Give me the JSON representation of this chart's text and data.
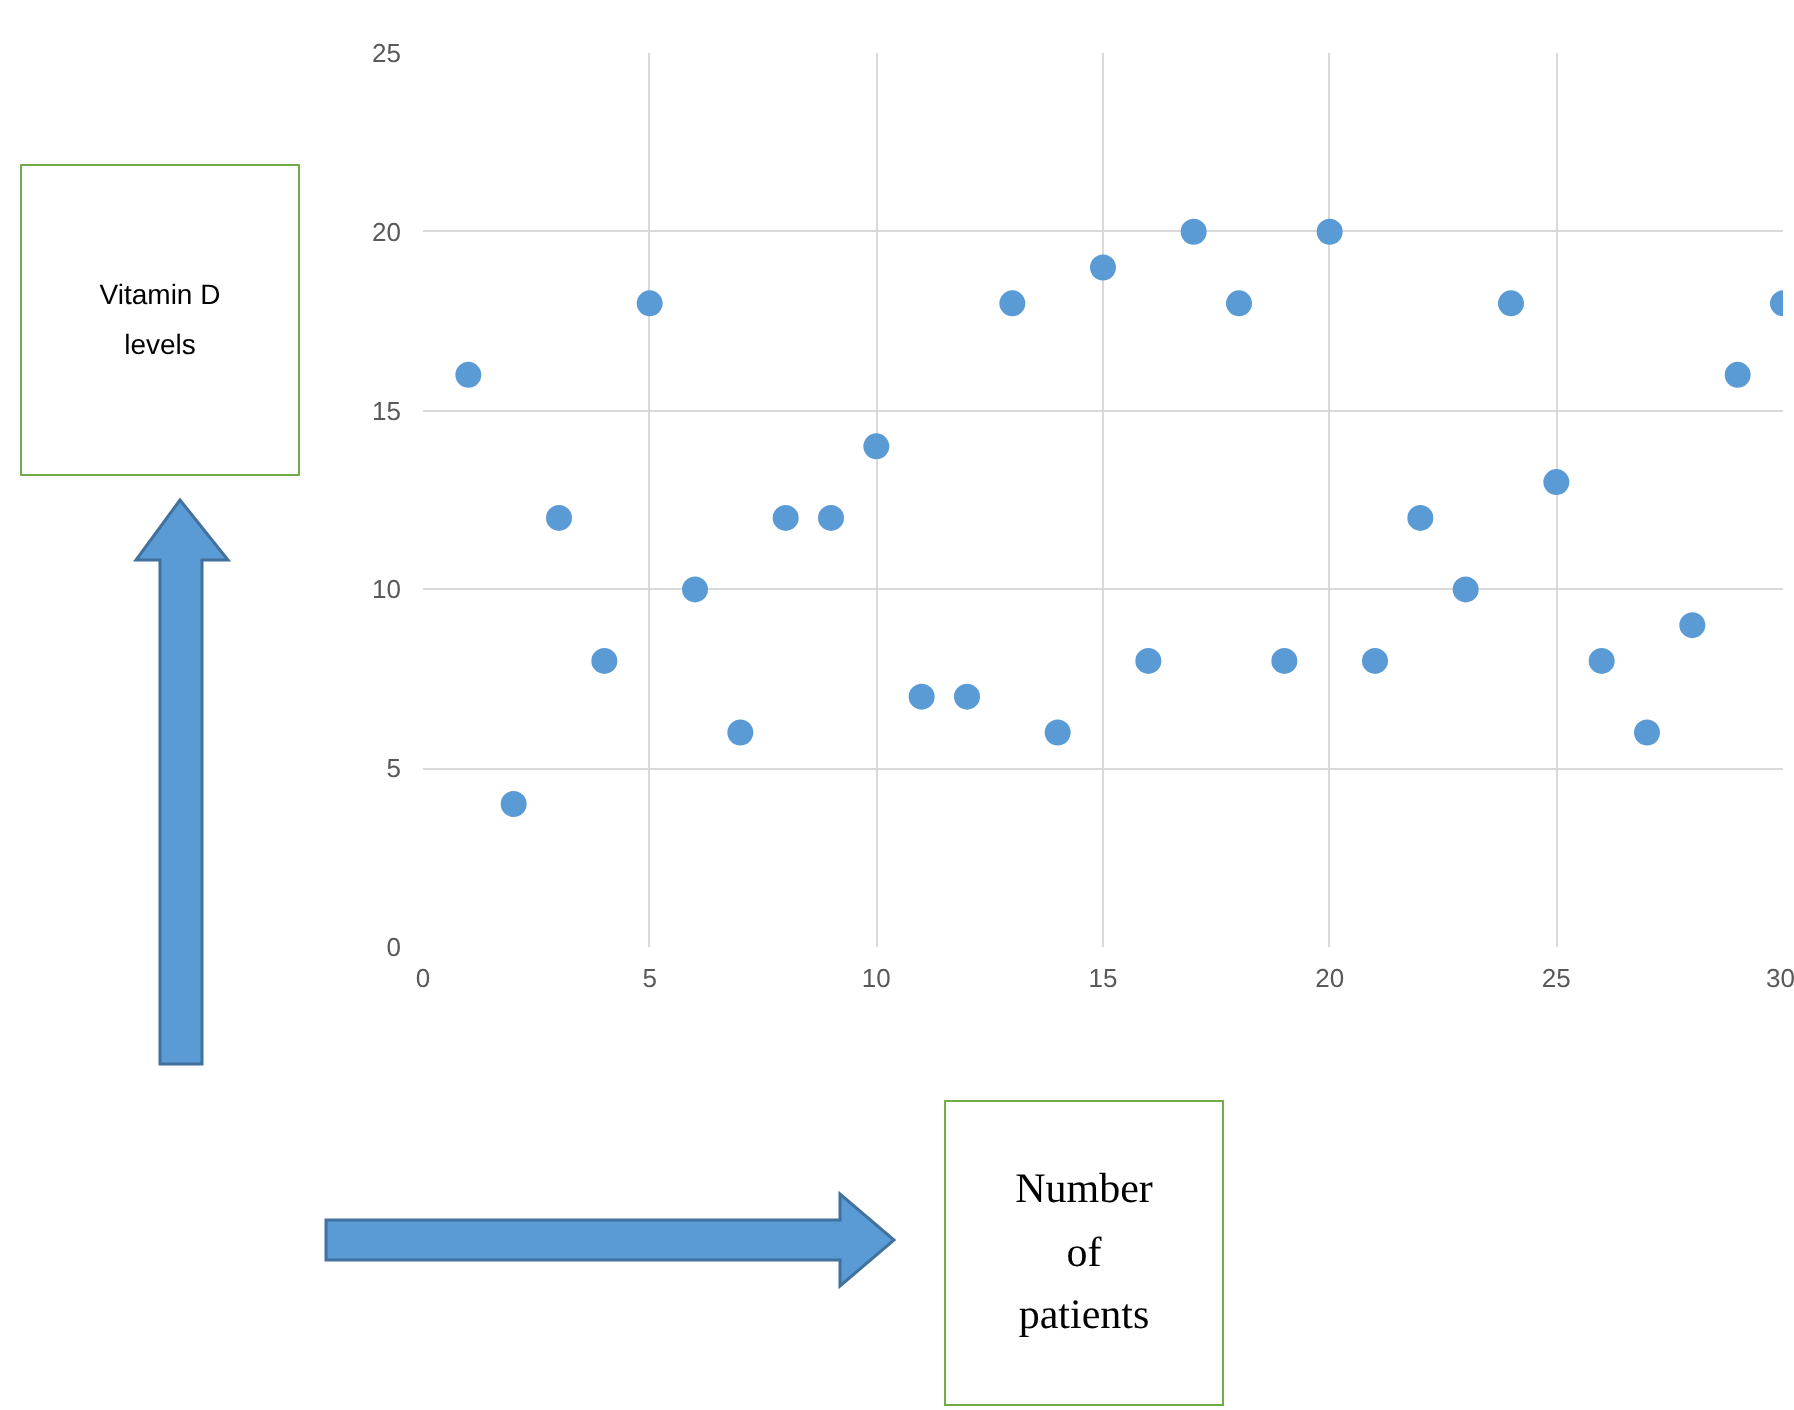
{
  "chart_data": {
    "type": "scatter",
    "xlabel": "Number of patients",
    "annotations": [
      "Vitamin D levels"
    ],
    "x": [
      1,
      2,
      3,
      4,
      5,
      6,
      7,
      8,
      9,
      10,
      11,
      12,
      13,
      14,
      15,
      16,
      17,
      18,
      19,
      20,
      21,
      22,
      23,
      24,
      25,
      26,
      27,
      28,
      29,
      30
    ],
    "values": [
      16,
      4,
      12,
      8,
      18,
      10,
      6,
      12,
      12,
      14,
      7,
      7,
      18,
      6,
      19,
      8,
      20,
      18,
      8,
      20,
      8,
      12,
      10,
      18,
      13,
      8,
      6,
      9,
      16,
      18
    ],
    "color": "#5b9bd5",
    "marker": "circle",
    "xlim": [
      0,
      30
    ],
    "ylim": [
      0,
      25
    ],
    "xticks": [
      0,
      5,
      10,
      15,
      20,
      25,
      30
    ],
    "yticks": [
      0,
      5,
      10,
      15,
      20,
      25
    ],
    "grid": true
  }
}
